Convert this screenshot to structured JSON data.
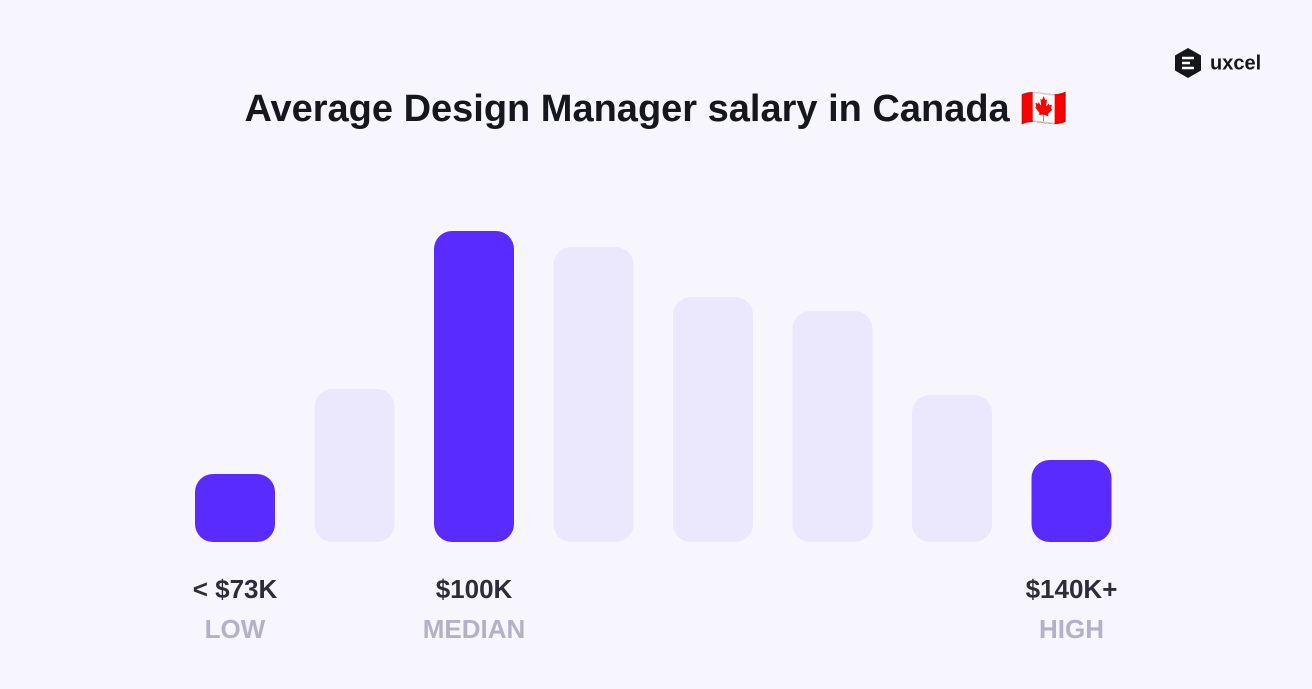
{
  "brand": "uxcel",
  "chart_data": {
    "type": "bar",
    "title": "Average Design Manager salary in Canada 🇨🇦",
    "categories": [
      "< $73K",
      null,
      "$100K",
      null,
      null,
      null,
      null,
      "$140K+"
    ],
    "category_notes": [
      "LOW",
      null,
      "MEDIAN",
      null,
      null,
      null,
      null,
      "HIGH"
    ],
    "values": [
      68,
      153,
      311,
      295,
      245,
      231,
      147,
      82
    ],
    "colors": [
      "#5a2bff",
      "#ebe7fc",
      "#5a2bff",
      "#ebe7fc",
      "#ebe7fc",
      "#ebe7fc",
      "#ebe7fc",
      "#5a2bff"
    ]
  }
}
